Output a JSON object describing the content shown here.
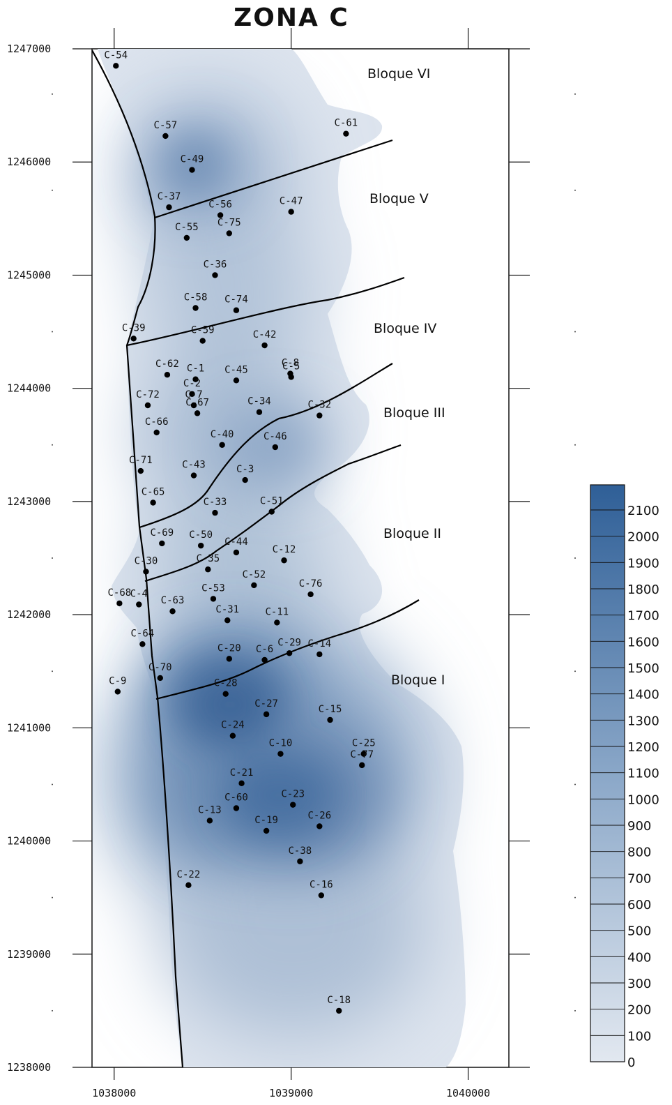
{
  "title": "ZONA C",
  "colors": {
    "low": "#dfe6ef",
    "high": "#2f5f97",
    "frame": "#111111",
    "fault": "#000000",
    "well": "#000000"
  },
  "axes": {
    "x": {
      "min": 1037875,
      "max": 1040230,
      "ticks": [
        "1038000",
        "1039000",
        "1040000"
      ]
    },
    "y": {
      "min": 1238000,
      "max": 1247000,
      "ticks": [
        "1247000",
        "1246000",
        "1245000",
        "1244000",
        "1243000",
        "1242000",
        "1241000",
        "1240000",
        "1239000",
        "1238000"
      ]
    }
  },
  "legend": {
    "position": "right",
    "labels": [
      "2100",
      "2000",
      "1900",
      "1800",
      "1700",
      "1600",
      "1500",
      "1400",
      "1300",
      "1200",
      "1100",
      "1000",
      "900",
      "800",
      "700",
      "600",
      "500",
      "400",
      "300",
      "200",
      "100",
      "0"
    ]
  },
  "blocks": [
    "Bloque VI",
    "Bloque V",
    "Bloque IV",
    "Bloque III",
    "Bloque II",
    "Bloque I"
  ],
  "wells": [
    {
      "name": "C-54",
      "x": 1038010,
      "y": 1246850
    },
    {
      "name": "C-57",
      "x": 1038290,
      "y": 1246230
    },
    {
      "name": "C-61",
      "x": 1039310,
      "y": 1246250
    },
    {
      "name": "C-49",
      "x": 1038440,
      "y": 1245930
    },
    {
      "name": "C-37",
      "x": 1038310,
      "y": 1245600
    },
    {
      "name": "C-56",
      "x": 1038600,
      "y": 1245530
    },
    {
      "name": "C-47",
      "x": 1039000,
      "y": 1245560
    },
    {
      "name": "C-75",
      "x": 1038650,
      "y": 1245370
    },
    {
      "name": "C-55",
      "x": 1038410,
      "y": 1245330
    },
    {
      "name": "C-36",
      "x": 1038570,
      "y": 1245000
    },
    {
      "name": "C-58",
      "x": 1038460,
      "y": 1244710
    },
    {
      "name": "C-74",
      "x": 1038690,
      "y": 1244690
    },
    {
      "name": "C-39",
      "x": 1038110,
      "y": 1244440
    },
    {
      "name": "C-59",
      "x": 1038500,
      "y": 1244420
    },
    {
      "name": "C-42",
      "x": 1038850,
      "y": 1244380
    },
    {
      "name": "C-8",
      "x": 1038995,
      "y": 1244130
    },
    {
      "name": "C-5",
      "x": 1039000,
      "y": 1244100
    },
    {
      "name": "C-62",
      "x": 1038300,
      "y": 1244120
    },
    {
      "name": "C-1",
      "x": 1038460,
      "y": 1244080
    },
    {
      "name": "C-45",
      "x": 1038690,
      "y": 1244070
    },
    {
      "name": "C-2",
      "x": 1038440,
      "y": 1243950
    },
    {
      "name": "C-72",
      "x": 1038190,
      "y": 1243850
    },
    {
      "name": "C-7",
      "x": 1038450,
      "y": 1243850
    },
    {
      "name": "C-67",
      "x": 1038470,
      "y": 1243780
    },
    {
      "name": "C-34",
      "x": 1038820,
      "y": 1243790
    },
    {
      "name": "C-32",
      "x": 1039160,
      "y": 1243760
    },
    {
      "name": "C-66",
      "x": 1038240,
      "y": 1243610
    },
    {
      "name": "C-40",
      "x": 1038610,
      "y": 1243500
    },
    {
      "name": "C-46",
      "x": 1038910,
      "y": 1243480
    },
    {
      "name": "C-71",
      "x": 1038150,
      "y": 1243270
    },
    {
      "name": "C-43",
      "x": 1038450,
      "y": 1243230
    },
    {
      "name": "C-3",
      "x": 1038740,
      "y": 1243190
    },
    {
      "name": "C-65",
      "x": 1038220,
      "y": 1242990
    },
    {
      "name": "C-33",
      "x": 1038570,
      "y": 1242900
    },
    {
      "name": "C-51",
      "x": 1038890,
      "y": 1242910
    },
    {
      "name": "C-69",
      "x": 1038270,
      "y": 1242630
    },
    {
      "name": "C-50",
      "x": 1038490,
      "y": 1242610
    },
    {
      "name": "C-44",
      "x": 1038690,
      "y": 1242550
    },
    {
      "name": "C-12",
      "x": 1038960,
      "y": 1242480
    },
    {
      "name": "C-30",
      "x": 1038180,
      "y": 1242380
    },
    {
      "name": "C-35",
      "x": 1038530,
      "y": 1242400
    },
    {
      "name": "C-52",
      "x": 1038790,
      "y": 1242260
    },
    {
      "name": "C-76",
      "x": 1039110,
      "y": 1242180
    },
    {
      "name": "C-68",
      "x": 1038030,
      "y": 1242100
    },
    {
      "name": "C-4",
      "x": 1038140,
      "y": 1242090
    },
    {
      "name": "C-53",
      "x": 1038560,
      "y": 1242140
    },
    {
      "name": "C-63",
      "x": 1038330,
      "y": 1242030
    },
    {
      "name": "C-31",
      "x": 1038640,
      "y": 1241950
    },
    {
      "name": "C-11",
      "x": 1038920,
      "y": 1241930
    },
    {
      "name": "C-64",
      "x": 1038160,
      "y": 1241740
    },
    {
      "name": "C-20",
      "x": 1038650,
      "y": 1241610
    },
    {
      "name": "C-6",
      "x": 1038850,
      "y": 1241600
    },
    {
      "name": "C-29",
      "x": 1038990,
      "y": 1241660
    },
    {
      "name": "C-14",
      "x": 1039160,
      "y": 1241650
    },
    {
      "name": "C-70",
      "x": 1038260,
      "y": 1241440
    },
    {
      "name": "C-9",
      "x": 1038020,
      "y": 1241320
    },
    {
      "name": "C-28",
      "x": 1038630,
      "y": 1241300
    },
    {
      "name": "C-27",
      "x": 1038860,
      "y": 1241120
    },
    {
      "name": "C-15",
      "x": 1039220,
      "y": 1241070
    },
    {
      "name": "C-24",
      "x": 1038670,
      "y": 1240930
    },
    {
      "name": "C-25",
      "x": 1039410,
      "y": 1240770
    },
    {
      "name": "C-10",
      "x": 1038940,
      "y": 1240770
    },
    {
      "name": "C-77",
      "x": 1039400,
      "y": 1240670
    },
    {
      "name": "C-21",
      "x": 1038720,
      "y": 1240510
    },
    {
      "name": "C-60",
      "x": 1038690,
      "y": 1240290
    },
    {
      "name": "C-23",
      "x": 1039010,
      "y": 1240320
    },
    {
      "name": "C-13",
      "x": 1038540,
      "y": 1240180
    },
    {
      "name": "C-19",
      "x": 1038860,
      "y": 1240090
    },
    {
      "name": "C-26",
      "x": 1039160,
      "y": 1240130
    },
    {
      "name": "C-38",
      "x": 1039050,
      "y": 1239820
    },
    {
      "name": "C-22",
      "x": 1038420,
      "y": 1239610
    },
    {
      "name": "C-16",
      "x": 1039170,
      "y": 1239520
    },
    {
      "name": "C-18",
      "x": 1039270,
      "y": 1238500
    }
  ]
}
